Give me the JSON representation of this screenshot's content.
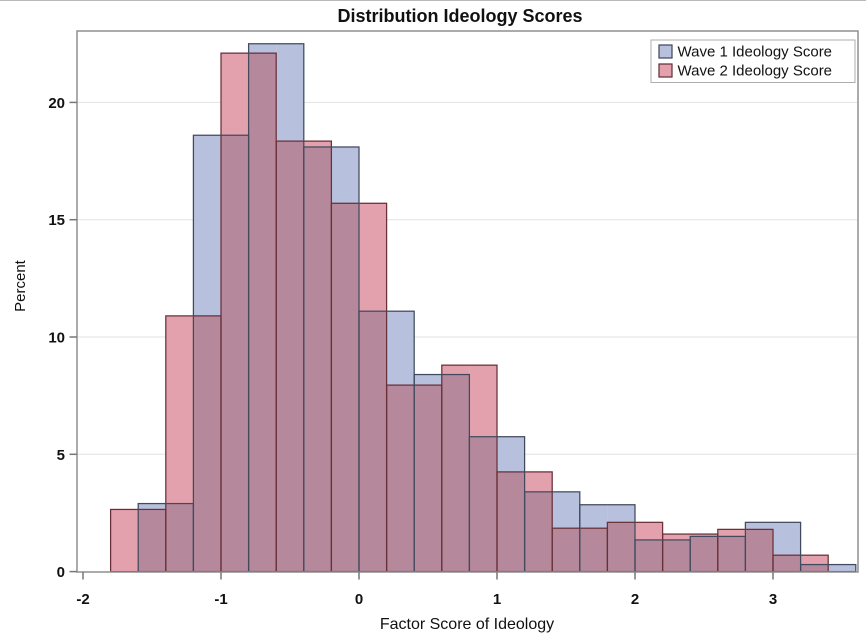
{
  "title": "Distribution Ideology Scores",
  "x_axis": {
    "label": "Factor Score of Ideology",
    "tick_labels": [
      "-2",
      "-1",
      "0",
      "1",
      "2",
      "3"
    ],
    "tick_values": [
      -2,
      -1,
      0,
      1,
      2,
      3
    ]
  },
  "y_axis": {
    "label": "Percent",
    "tick_labels": [
      "0",
      "5",
      "10",
      "15",
      "20"
    ],
    "tick_values": [
      0,
      5,
      10,
      15,
      20
    ]
  },
  "legend": {
    "items": [
      {
        "label": "Wave 1 Ideology Score",
        "swatch_color": "#b7c0dc",
        "swatch_border": "#424a5e"
      },
      {
        "label": "Wave 2 Ideology Score",
        "swatch_color": "#e2a1ac",
        "swatch_border": "#693039"
      }
    ]
  },
  "colors": {
    "wave1_fill": "#b7c0dc",
    "wave1_border": "#424a5e",
    "wave2_fill": "#e2a1ac",
    "wave2_border": "#693039",
    "overlap_fill": "#b5899b",
    "frame": "#8f8f8f",
    "gridline": "#e2e2e2",
    "tick": "#777777"
  },
  "chart_data": {
    "type": "bar",
    "subtype": "overlaid-histograms",
    "title": "Distribution Ideology Scores",
    "xlabel": "Factor Score of Ideology",
    "ylabel": "Percent",
    "xlim": [
      -2.04,
      3.62
    ],
    "ylim": [
      0,
      23.1
    ],
    "grid": true,
    "legend_position": "top-right-inside",
    "bin_width": 0.4,
    "series": [
      {
        "name": "Wave 1 Ideology Score",
        "first_bin_start": -1.6,
        "bin_starts": [
          -1.6,
          -1.2,
          -0.8,
          -0.4,
          0.0,
          0.4,
          0.8,
          1.2,
          1.6,
          2.0,
          2.4,
          2.8,
          3.2
        ],
        "percents": [
          2.9,
          18.6,
          22.5,
          18.1,
          11.1,
          8.4,
          5.75,
          3.4,
          2.85,
          1.35,
          1.5,
          2.1,
          0.3
        ]
      },
      {
        "name": "Wave 2 Ideology Score",
        "first_bin_start": -1.8,
        "bin_starts": [
          -1.8,
          -1.4,
          -1.0,
          -0.6,
          -0.2,
          0.2,
          0.6,
          1.0,
          1.4,
          1.8,
          2.2,
          2.6,
          3.0
        ],
        "percents": [
          2.65,
          10.9,
          22.1,
          18.35,
          15.7,
          7.95,
          8.8,
          4.25,
          1.85,
          2.1,
          1.6,
          1.8,
          0.7
        ]
      }
    ]
  }
}
